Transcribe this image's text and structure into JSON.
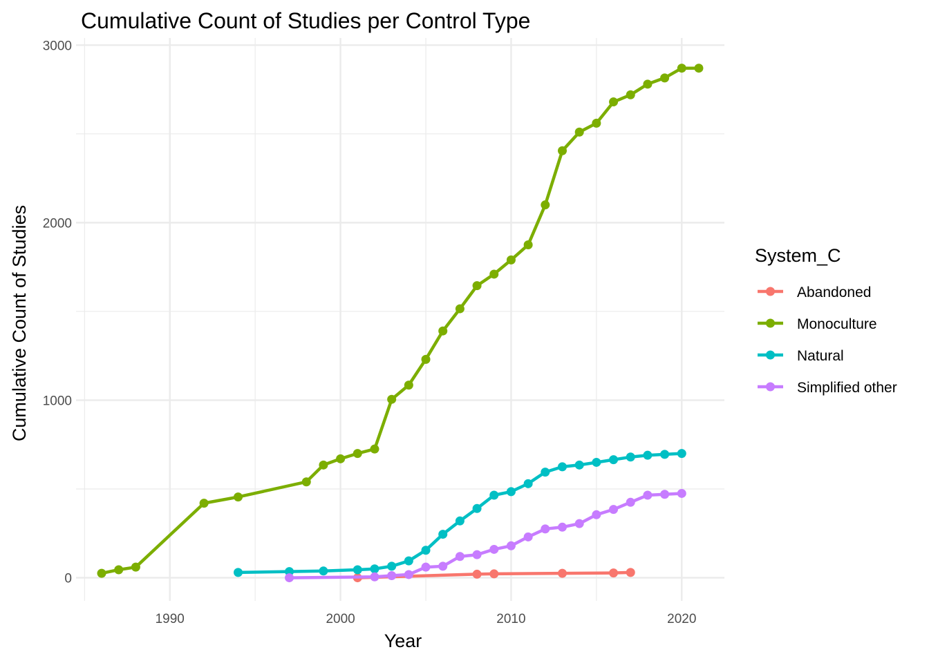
{
  "chart_data": {
    "type": "line",
    "title": "Cumulative Count of Studies per Control Type",
    "xlabel": "Year",
    "ylabel": "Cumulative Count of Studies",
    "xlim": [
      1984.5,
      2022.5
    ],
    "ylim": [
      -130,
      3040
    ],
    "x_ticks": [
      1990,
      2000,
      2010,
      2020
    ],
    "y_ticks": [
      0,
      1000,
      2000,
      3000
    ],
    "x_tick_labels": [
      "1990",
      "2000",
      "2010",
      "2020"
    ],
    "y_tick_labels": [
      "0",
      "1000",
      "2000",
      "3000"
    ],
    "grid": true,
    "legend": {
      "title": "System_C",
      "position": "right"
    },
    "series": [
      {
        "name": "Abandoned",
        "color": "#F8766D",
        "points": [
          [
            2001,
            0
          ],
          [
            2008,
            20
          ],
          [
            2009,
            22
          ],
          [
            2013,
            25
          ],
          [
            2016,
            27
          ],
          [
            2017,
            30
          ]
        ]
      },
      {
        "name": "Monoculture",
        "color": "#7CAE00",
        "points": [
          [
            1986,
            25
          ],
          [
            1987,
            45
          ],
          [
            1988,
            60
          ],
          [
            1992,
            420
          ],
          [
            1994,
            455
          ],
          [
            1998,
            540
          ],
          [
            1999,
            635
          ],
          [
            2000,
            670
          ],
          [
            2001,
            700
          ],
          [
            2002,
            725
          ],
          [
            2003,
            1005
          ],
          [
            2004,
            1085
          ],
          [
            2005,
            1230
          ],
          [
            2006,
            1390
          ],
          [
            2007,
            1515
          ],
          [
            2008,
            1645
          ],
          [
            2009,
            1710
          ],
          [
            2010,
            1790
          ],
          [
            2011,
            1875
          ],
          [
            2012,
            2100
          ],
          [
            2013,
            2405
          ],
          [
            2014,
            2510
          ],
          [
            2015,
            2560
          ],
          [
            2016,
            2680
          ],
          [
            2017,
            2720
          ],
          [
            2018,
            2780
          ],
          [
            2019,
            2815
          ],
          [
            2020,
            2870
          ],
          [
            2021,
            2870
          ]
        ]
      },
      {
        "name": "Natural",
        "color": "#00BFC4",
        "points": [
          [
            1994,
            30
          ],
          [
            1997,
            35
          ],
          [
            1999,
            38
          ],
          [
            2001,
            45
          ],
          [
            2002,
            50
          ],
          [
            2003,
            65
          ],
          [
            2004,
            95
          ],
          [
            2005,
            155
          ],
          [
            2006,
            245
          ],
          [
            2007,
            320
          ],
          [
            2008,
            390
          ],
          [
            2009,
            465
          ],
          [
            2010,
            485
          ],
          [
            2011,
            530
          ],
          [
            2012,
            595
          ],
          [
            2013,
            625
          ],
          [
            2014,
            635
          ],
          [
            2015,
            650
          ],
          [
            2016,
            665
          ],
          [
            2017,
            680
          ],
          [
            2018,
            690
          ],
          [
            2019,
            695
          ],
          [
            2020,
            700
          ]
        ]
      },
      {
        "name": "Simplified other",
        "color": "#C77CFF",
        "points": [
          [
            1997,
            0
          ],
          [
            2002,
            5
          ],
          [
            2003,
            12
          ],
          [
            2004,
            18
          ],
          [
            2005,
            60
          ],
          [
            2006,
            65
          ],
          [
            2007,
            120
          ],
          [
            2008,
            130
          ],
          [
            2009,
            160
          ],
          [
            2010,
            180
          ],
          [
            2011,
            230
          ],
          [
            2012,
            275
          ],
          [
            2013,
            285
          ],
          [
            2014,
            305
          ],
          [
            2015,
            355
          ],
          [
            2016,
            385
          ],
          [
            2017,
            425
          ],
          [
            2018,
            465
          ],
          [
            2019,
            470
          ],
          [
            2020,
            475
          ]
        ]
      }
    ]
  }
}
